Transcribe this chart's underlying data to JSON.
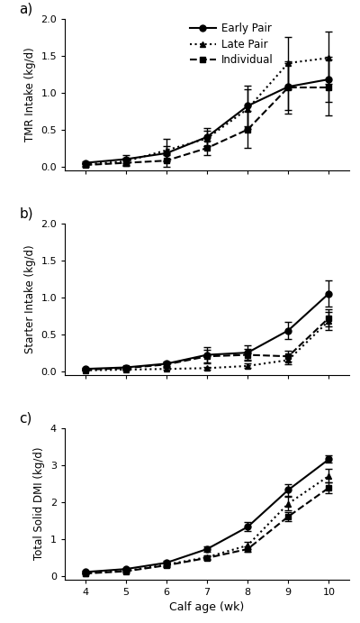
{
  "x": [
    4,
    5,
    6,
    7,
    8,
    9,
    10
  ],
  "panel_a": {
    "title": "a)",
    "ylabel": "TMR Intake (kg/d)",
    "ylim": [
      -0.05,
      2.0
    ],
    "yticks": [
      0,
      0.5,
      1.0,
      1.5,
      2.0
    ],
    "early_pair": [
      0.05,
      0.1,
      0.18,
      0.4,
      0.82,
      1.08,
      1.18
    ],
    "early_pair_se": [
      0.02,
      0.06,
      0.1,
      0.12,
      0.27,
      0.32,
      0.3
    ],
    "late_pair": [
      0.03,
      0.07,
      0.22,
      0.38,
      0.78,
      1.4,
      1.47
    ],
    "late_pair_se": [
      0.02,
      0.05,
      0.15,
      0.1,
      0.27,
      0.35,
      0.35
    ],
    "individual": [
      0.02,
      0.05,
      0.08,
      0.25,
      0.5,
      1.07,
      1.07
    ],
    "individual_se": [
      0.02,
      0.04,
      0.08,
      0.1,
      0.25,
      0.35,
      0.38
    ]
  },
  "panel_b": {
    "title": "b)",
    "ylabel": "Starter Intake (kg/d)",
    "ylim": [
      -0.05,
      2.0
    ],
    "yticks": [
      0,
      0.5,
      1.0,
      1.5,
      2.0
    ],
    "early_pair": [
      0.03,
      0.05,
      0.1,
      0.22,
      0.25,
      0.55,
      1.05
    ],
    "early_pair_se": [
      0.01,
      0.02,
      0.03,
      0.1,
      0.1,
      0.12,
      0.18
    ],
    "late_pair": [
      0.01,
      0.02,
      0.03,
      0.04,
      0.07,
      0.15,
      0.68
    ],
    "late_pair_se": [
      0.005,
      0.01,
      0.01,
      0.02,
      0.03,
      0.06,
      0.12
    ],
    "individual": [
      0.02,
      0.04,
      0.09,
      0.2,
      0.22,
      0.2,
      0.72
    ],
    "individual_se": [
      0.01,
      0.02,
      0.03,
      0.09,
      0.08,
      0.07,
      0.12
    ]
  },
  "panel_c": {
    "title": "c)",
    "ylabel": "Total Solid DMI (kg/d)",
    "ylim": [
      -0.1,
      4.0
    ],
    "yticks": [
      0,
      1,
      2,
      3,
      4
    ],
    "early_pair": [
      0.1,
      0.18,
      0.35,
      0.72,
      1.32,
      2.32,
      3.15
    ],
    "early_pair_se": [
      0.03,
      0.04,
      0.06,
      0.07,
      0.12,
      0.15,
      0.1
    ],
    "late_pair": [
      0.07,
      0.13,
      0.3,
      0.5,
      0.82,
      1.95,
      2.7
    ],
    "late_pair_se": [
      0.02,
      0.03,
      0.05,
      0.06,
      0.1,
      0.18,
      0.18
    ],
    "individual": [
      0.06,
      0.12,
      0.28,
      0.48,
      0.72,
      1.6,
      2.38
    ],
    "individual_se": [
      0.02,
      0.03,
      0.05,
      0.05,
      0.08,
      0.12,
      0.15
    ]
  },
  "xlabel": "Calf age (wk)",
  "line_color": "black",
  "early_marker": "o",
  "late_marker": "^",
  "ind_marker": "s",
  "early_ls": "-",
  "late_ls": ":",
  "ind_ls": "--",
  "legend_labels": [
    "Early Pair",
    "Late Pair",
    "Individual"
  ],
  "markersize": 5,
  "linewidth": 1.5,
  "capsize": 3,
  "elinewidth": 1.0
}
